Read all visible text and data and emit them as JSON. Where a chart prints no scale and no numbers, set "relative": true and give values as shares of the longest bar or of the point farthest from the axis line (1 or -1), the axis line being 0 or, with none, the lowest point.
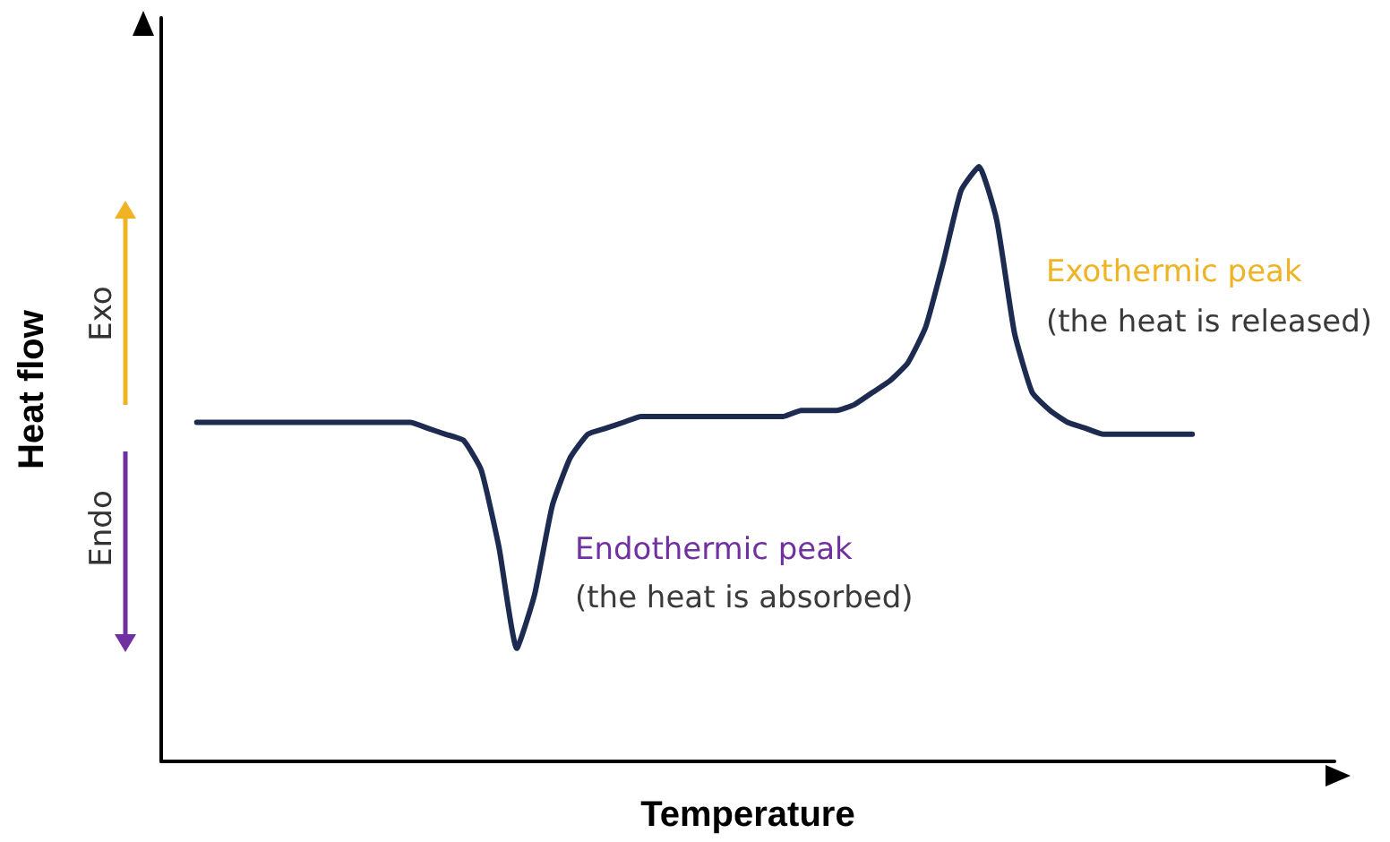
{
  "chart_data": {
    "type": "line",
    "relative": true,
    "xlabel": "Temperature",
    "ylabel": "Heat flow",
    "categories": [
      null,
      null,
      null,
      null,
      null,
      null,
      null,
      null,
      null,
      null,
      null,
      null,
      null,
      null,
      null,
      null,
      null,
      null,
      null,
      null,
      null,
      null,
      null,
      null,
      null,
      null,
      null,
      null,
      null,
      null,
      null,
      null,
      null,
      null,
      null,
      null,
      null,
      null,
      null,
      null,
      null,
      null,
      null,
      null,
      null,
      null,
      null,
      null,
      null,
      null,
      null,
      null,
      null,
      null,
      null,
      null,
      null,
      null,
      null,
      null,
      null,
      null,
      null,
      null,
      null,
      null,
      null
    ],
    "series": [
      {
        "color": "#1c2b4f",
        "values": [
          null,
          null,
          0.57,
          0.57,
          0.57,
          0.57,
          0.57,
          0.57,
          0.57,
          0.57,
          0.57,
          0.57,
          0.57,
          0.57,
          0.57,
          0.56,
          0.55,
          0.54,
          0.49,
          0.36,
          0.19,
          0.28,
          0.43,
          0.51,
          0.55,
          0.56,
          0.57,
          0.58,
          0.58,
          0.58,
          0.58,
          0.58,
          0.58,
          0.58,
          0.58,
          0.58,
          0.59,
          0.59,
          0.59,
          0.6,
          0.62,
          0.64,
          0.67,
          0.73,
          0.84,
          0.96,
          1,
          0.91,
          0.72,
          0.62,
          0.59,
          0.57,
          0.56,
          0.55,
          0.55,
          0.55,
          0.55,
          0.55,
          0.55,
          null,
          null,
          null,
          null,
          null,
          null,
          null,
          null
        ]
      }
    ],
    "annotations": [
      "Exo",
      "Endo",
      "Exothermic peak",
      "(the heat is released)",
      "Endothermic peak",
      "(the heat is absorbed)"
    ],
    "marker": "none",
    "line_style": "solid"
  }
}
